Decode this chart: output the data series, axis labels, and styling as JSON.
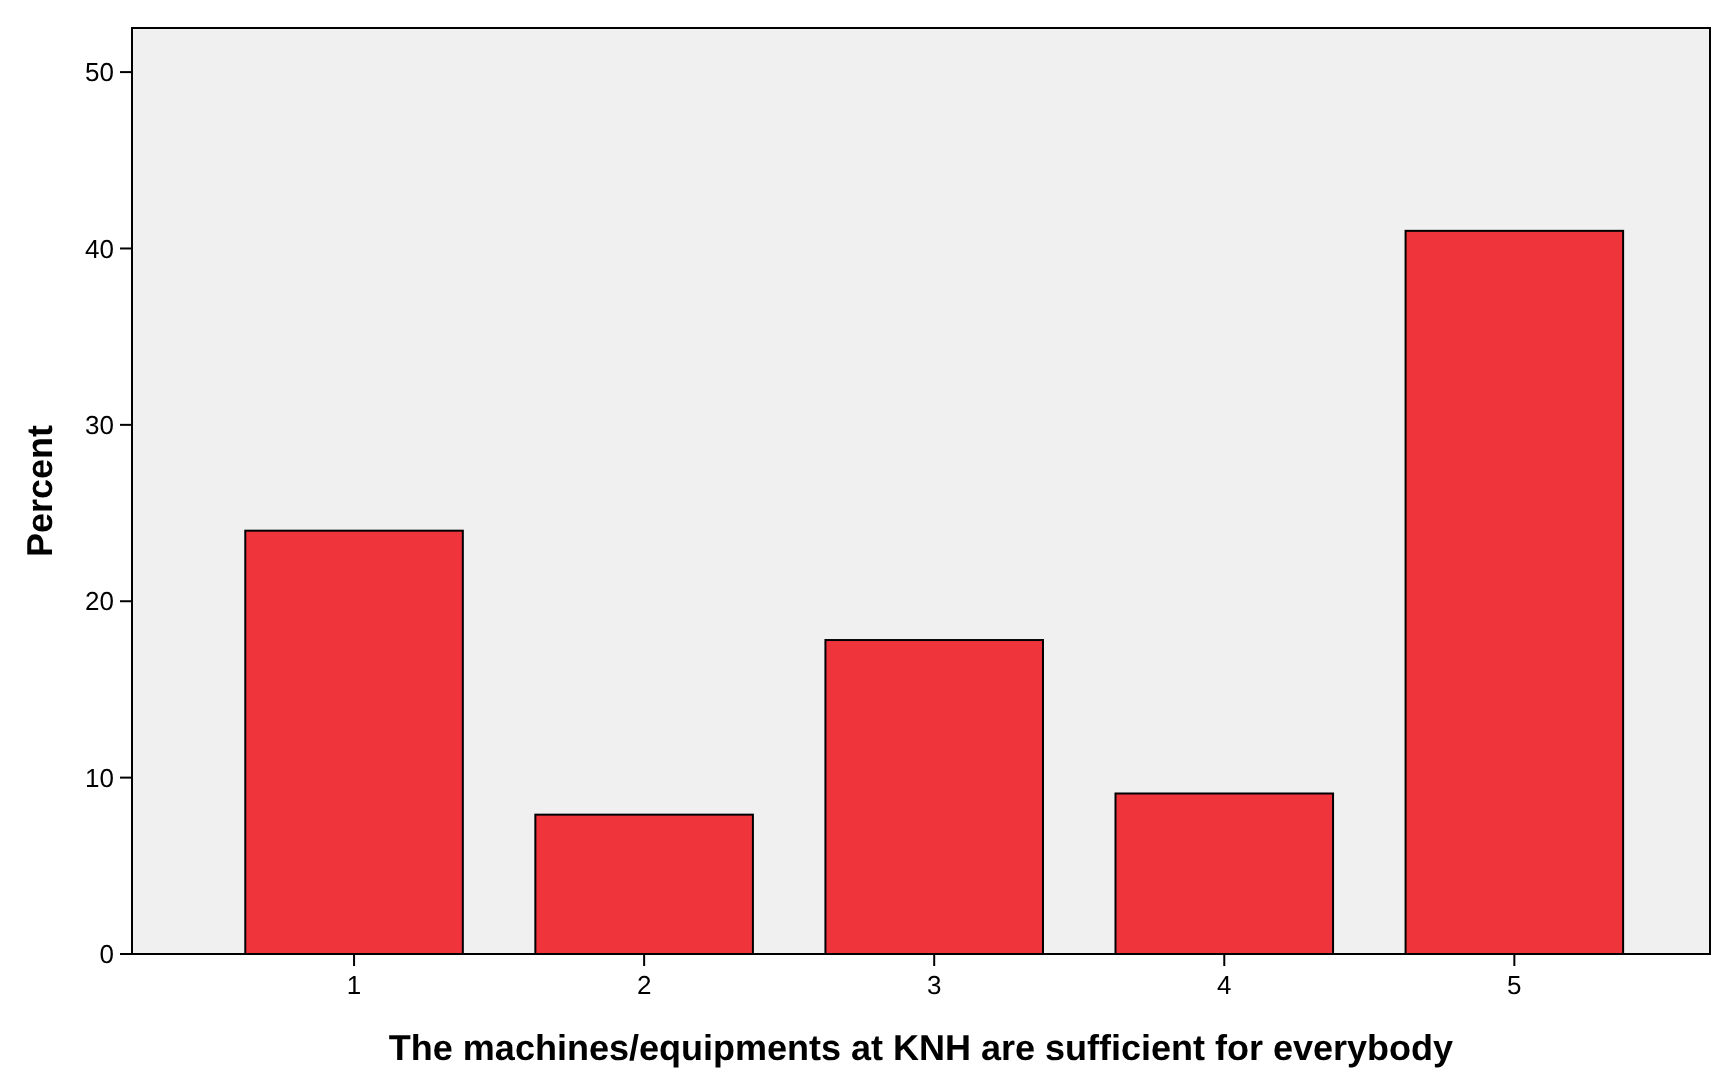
{
  "chart_data": {
    "type": "bar",
    "xlabel": "The machines/equipments at KNH are sufficient for everybody",
    "ylabel": "Percent",
    "categories": [
      "1",
      "2",
      "3",
      "4",
      "5"
    ],
    "values": [
      24.0,
      7.9,
      17.8,
      9.1,
      41.0
    ],
    "color": "#f0343c",
    "ylim": [
      0,
      52.5
    ],
    "yticks": [
      0,
      10,
      20,
      30,
      40,
      50
    ],
    "grid": false
  }
}
